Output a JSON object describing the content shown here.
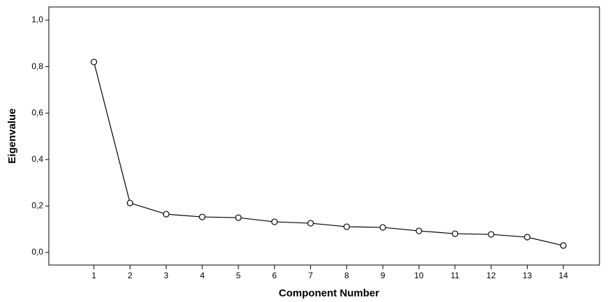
{
  "chart_data": {
    "type": "line",
    "x_label": "Component Number",
    "y_label": "Eigenvalue",
    "x": [
      1,
      2,
      3,
      4,
      5,
      6,
      7,
      8,
      9,
      10,
      11,
      12,
      13,
      14
    ],
    "series": [
      {
        "color": "#000000",
        "values": [
          0.82,
          0.213,
          0.165,
          0.153,
          0.15,
          0.132,
          0.126,
          0.111,
          0.108,
          0.093,
          0.081,
          0.078,
          0.066,
          0.03
        ]
      }
    ],
    "xlim": [
      -0.25,
      15
    ],
    "xticks": [
      1,
      2,
      3,
      4,
      5,
      6,
      7,
      8,
      9,
      10,
      11,
      12,
      13,
      14
    ],
    "ylim": [
      -0.054,
      1.057
    ],
    "yticks": [
      {
        "value": 0,
        "label": "0,0"
      },
      {
        "value": 0.2,
        "label": "0,2"
      },
      {
        "value": 0.4,
        "label": "0,4"
      },
      {
        "value": 0.6,
        "label": "0,6"
      },
      {
        "value": 0.8,
        "label": "0,8"
      },
      {
        "value": 1.0,
        "label": "1,0"
      }
    ],
    "marker": "open-circle",
    "grid": false
  }
}
